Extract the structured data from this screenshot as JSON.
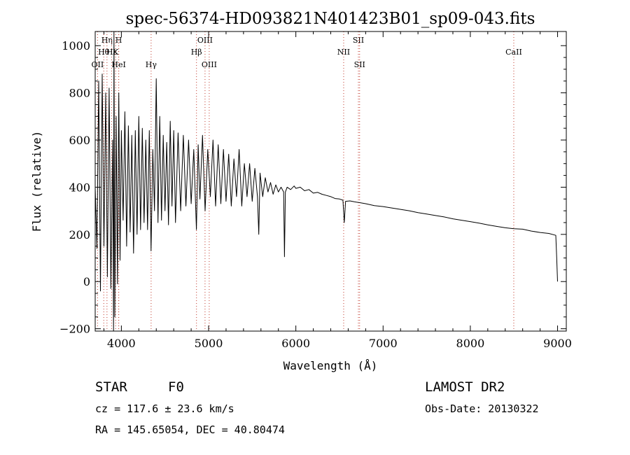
{
  "chart_data": {
    "type": "line",
    "title": "spec-56374-HD093821N401423B01_sp09-043.fits",
    "xlabel": "Wavelength (Å)",
    "ylabel": "Flux (relative)",
    "xlim": [
      3700,
      9100
    ],
    "ylim": [
      -210,
      1060
    ],
    "x_ticks": [
      4000,
      5000,
      6000,
      7000,
      8000,
      9000
    ],
    "y_ticks": [
      -200,
      0,
      200,
      400,
      600,
      800,
      1000
    ],
    "grid": false,
    "series": [
      {
        "color": "#000000",
        "points": [
          [
            3700,
            400
          ],
          [
            3720,
            140
          ],
          [
            3740,
            850
          ],
          [
            3760,
            -40
          ],
          [
            3780,
            880
          ],
          [
            3800,
            150
          ],
          [
            3820,
            800
          ],
          [
            3840,
            20
          ],
          [
            3860,
            820
          ],
          [
            3880,
            -30
          ],
          [
            3900,
            600
          ],
          [
            3910,
            -210
          ],
          [
            3915,
            1060
          ],
          [
            3925,
            -150
          ],
          [
            3940,
            700
          ],
          [
            3955,
            -10
          ],
          [
            3970,
            800
          ],
          [
            3985,
            90
          ],
          [
            4000,
            640
          ],
          [
            4020,
            260
          ],
          [
            4040,
            720
          ],
          [
            4060,
            150
          ],
          [
            4080,
            660
          ],
          [
            4100,
            210
          ],
          [
            4120,
            620
          ],
          [
            4140,
            120
          ],
          [
            4160,
            640
          ],
          [
            4180,
            200
          ],
          [
            4200,
            700
          ],
          [
            4220,
            220
          ],
          [
            4240,
            650
          ],
          [
            4260,
            250
          ],
          [
            4280,
            600
          ],
          [
            4300,
            220
          ],
          [
            4320,
            640
          ],
          [
            4340,
            130
          ],
          [
            4360,
            560
          ],
          [
            4380,
            300
          ],
          [
            4400,
            860
          ],
          [
            4420,
            250
          ],
          [
            4440,
            700
          ],
          [
            4460,
            260
          ],
          [
            4480,
            620
          ],
          [
            4500,
            300
          ],
          [
            4520,
            590
          ],
          [
            4540,
            240
          ],
          [
            4560,
            680
          ],
          [
            4580,
            320
          ],
          [
            4600,
            640
          ],
          [
            4620,
            250
          ],
          [
            4650,
            630
          ],
          [
            4680,
            300
          ],
          [
            4710,
            620
          ],
          [
            4740,
            320
          ],
          [
            4770,
            600
          ],
          [
            4800,
            330
          ],
          [
            4830,
            560
          ],
          [
            4860,
            220
          ],
          [
            4880,
            580
          ],
          [
            4900,
            350
          ],
          [
            4930,
            620
          ],
          [
            4960,
            300
          ],
          [
            4990,
            560
          ],
          [
            5020,
            360
          ],
          [
            5050,
            600
          ],
          [
            5080,
            320
          ],
          [
            5110,
            580
          ],
          [
            5140,
            330
          ],
          [
            5170,
            560
          ],
          [
            5200,
            340
          ],
          [
            5230,
            540
          ],
          [
            5260,
            320
          ],
          [
            5290,
            520
          ],
          [
            5320,
            360
          ],
          [
            5350,
            560
          ],
          [
            5380,
            320
          ],
          [
            5410,
            500
          ],
          [
            5440,
            360
          ],
          [
            5470,
            500
          ],
          [
            5500,
            340
          ],
          [
            5530,
            480
          ],
          [
            5560,
            360
          ],
          [
            5575,
            200
          ],
          [
            5590,
            460
          ],
          [
            5620,
            360
          ],
          [
            5650,
            440
          ],
          [
            5680,
            380
          ],
          [
            5710,
            420
          ],
          [
            5740,
            370
          ],
          [
            5770,
            410
          ],
          [
            5800,
            380
          ],
          [
            5830,
            400
          ],
          [
            5860,
            380
          ],
          [
            5870,
            105
          ],
          [
            5880,
            380
          ],
          [
            5900,
            400
          ],
          [
            5940,
            390
          ],
          [
            5980,
            405
          ],
          [
            6000,
            395
          ],
          [
            6050,
            400
          ],
          [
            6100,
            385
          ],
          [
            6150,
            390
          ],
          [
            6200,
            375
          ],
          [
            6250,
            378
          ],
          [
            6300,
            370
          ],
          [
            6350,
            365
          ],
          [
            6400,
            360
          ],
          [
            6450,
            352
          ],
          [
            6500,
            350
          ],
          [
            6540,
            345
          ],
          [
            6555,
            250
          ],
          [
            6570,
            340
          ],
          [
            6620,
            342
          ],
          [
            6670,
            338
          ],
          [
            6720,
            335
          ],
          [
            6800,
            330
          ],
          [
            6900,
            322
          ],
          [
            7000,
            318
          ],
          [
            7100,
            312
          ],
          [
            7200,
            306
          ],
          [
            7300,
            300
          ],
          [
            7400,
            292
          ],
          [
            7500,
            286
          ],
          [
            7600,
            280
          ],
          [
            7700,
            274
          ],
          [
            7800,
            266
          ],
          [
            7900,
            260
          ],
          [
            8000,
            254
          ],
          [
            8100,
            248
          ],
          [
            8200,
            240
          ],
          [
            8300,
            234
          ],
          [
            8400,
            228
          ],
          [
            8500,
            224
          ],
          [
            8600,
            222
          ],
          [
            8700,
            214
          ],
          [
            8800,
            208
          ],
          [
            8900,
            204
          ],
          [
            8980,
            196
          ],
          [
            8990,
            100
          ],
          [
            9000,
            0
          ]
        ]
      }
    ],
    "line_markers": [
      {
        "label": "OII",
        "x": 3727,
        "row": 3
      },
      {
        "label": "Hθ",
        "x": 3798,
        "row": 2
      },
      {
        "label": "Hη",
        "x": 3835,
        "row": 1
      },
      {
        "label": "Hε",
        "x": 3889,
        "row": 2
      },
      {
        "label": "K",
        "x": 3934,
        "row": 2
      },
      {
        "label": "H",
        "x": 3969,
        "row": 1
      },
      {
        "label": "HeI",
        "x": 3970,
        "row": 3
      },
      {
        "label": "Hγ",
        "x": 4341,
        "row": 3
      },
      {
        "label": "Hβ",
        "x": 4861,
        "row": 2
      },
      {
        "label": "OIII",
        "x": 4959,
        "row": 1
      },
      {
        "label": "OIII",
        "x": 5007,
        "row": 3
      },
      {
        "label": "NII",
        "x": 6548,
        "row": 2
      },
      {
        "label": "SII",
        "x": 6717,
        "row": 1
      },
      {
        "label": "SII",
        "x": 6731,
        "row": 3
      },
      {
        "label": "CaII",
        "x": 8498,
        "row": 2
      }
    ],
    "marker_color": "#c0392b"
  },
  "info": {
    "class": "STAR",
    "subclass": "F0",
    "survey": "LAMOST DR2",
    "cz": "cz = 117.6 ± 23.6 km/s",
    "obs_date": "Obs-Date: 20130322",
    "radec": "RA = 145.65054, DEC =  40.80474"
  }
}
